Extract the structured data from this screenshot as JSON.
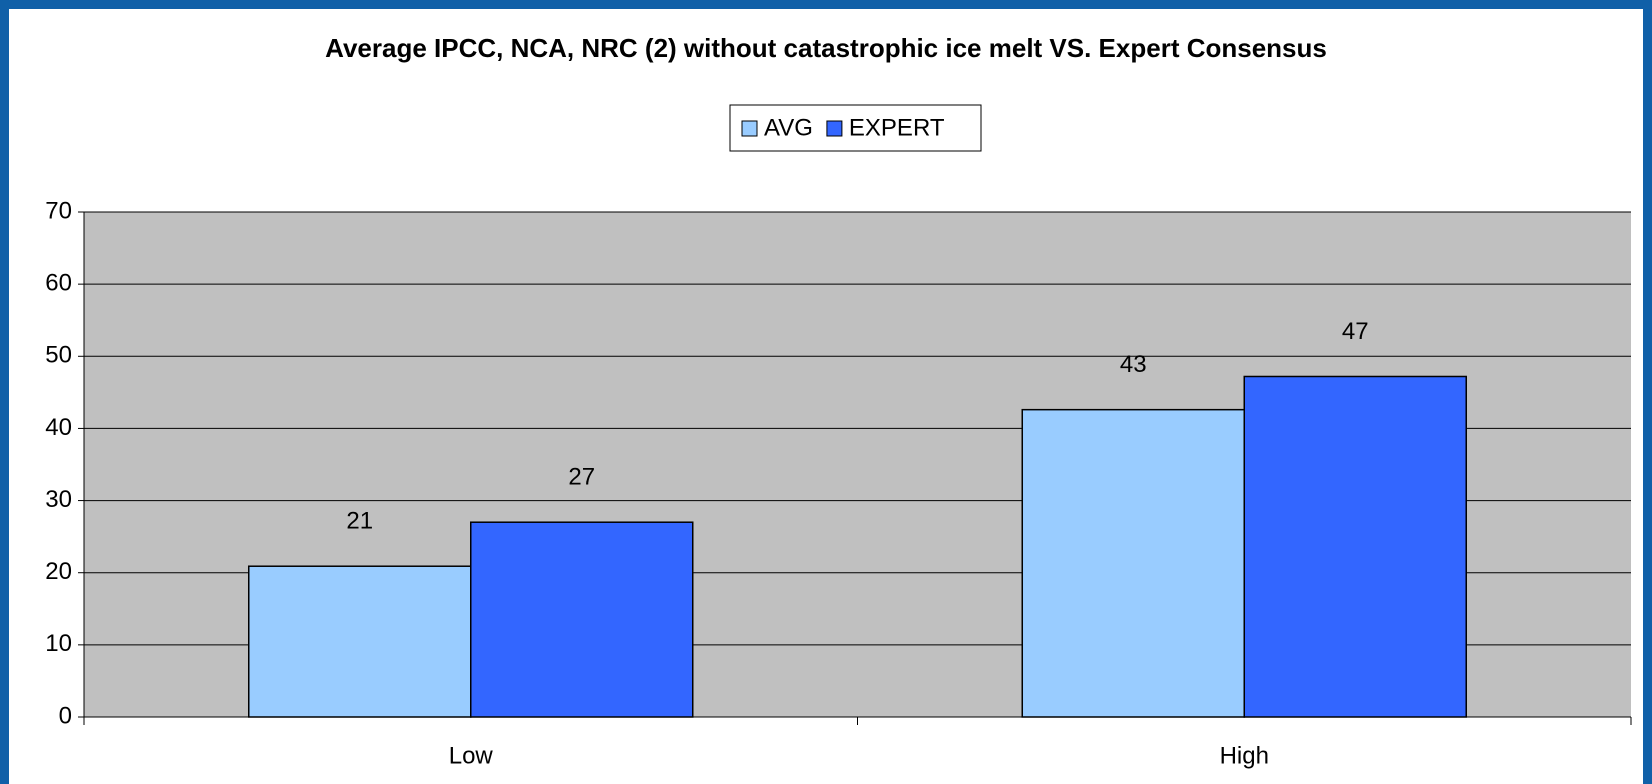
{
  "chart_data": {
    "type": "bar",
    "title": "Average IPCC, NCA, NRC (2) without catastrophic ice melt VS. Expert Consensus",
    "categories": [
      "Low",
      "High"
    ],
    "series": [
      {
        "name": "AVG",
        "color": "#99ccff",
        "values": [
          20.9,
          42.6
        ],
        "value_labels": [
          "21",
          "43"
        ]
      },
      {
        "name": "EXPERT",
        "color": "#3366ff",
        "values": [
          27,
          47.2
        ],
        "value_labels": [
          "27",
          "47"
        ]
      }
    ],
    "ylim": [
      0,
      70
    ],
    "yticks": [
      0,
      10,
      20,
      30,
      40,
      50,
      60,
      70
    ],
    "grid": true,
    "legend": "top",
    "plot_background": "#c0c0c0"
  }
}
